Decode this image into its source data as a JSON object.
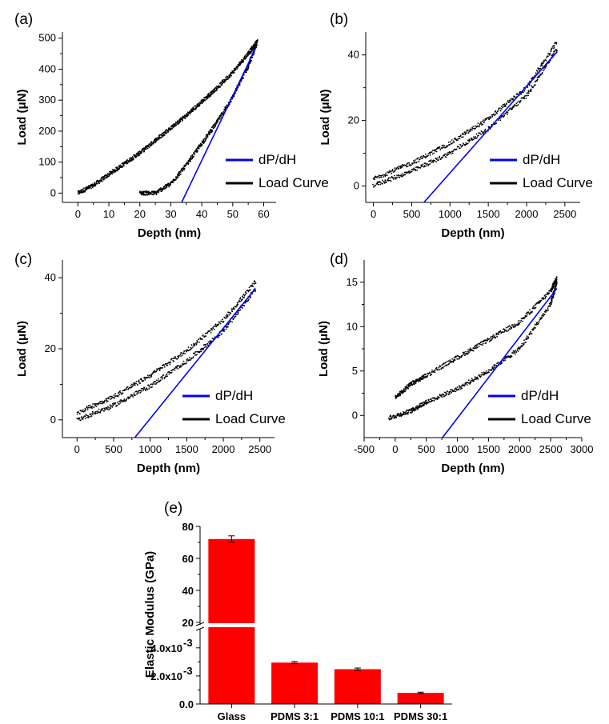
{
  "chart_data": [
    {
      "type": "scatter",
      "panel_label": "(a)",
      "xlabel": "Depth (nm)",
      "ylabel": "Load (μN)",
      "xlim": [
        -5,
        64
      ],
      "ylim": [
        -30,
        520
      ],
      "xticks": [
        0,
        10,
        20,
        30,
        40,
        50,
        60
      ],
      "yticks": [
        0,
        100,
        200,
        300,
        400,
        500
      ],
      "legend": {
        "position": "bottom-right",
        "entries": [
          "dP/dH",
          "Load Curve"
        ]
      },
      "series": [
        {
          "name": "Load Curve",
          "color": "#000000",
          "kind": "points",
          "segments": [
            {
              "x": [
                0,
                5,
                10,
                15,
                20,
                25,
                30,
                35,
                40,
                45,
                50,
                55,
                58
              ],
              "y": [
                0,
                25,
                60,
                95,
                130,
                170,
                210,
                250,
                295,
                340,
                390,
                450,
                490
              ]
            },
            {
              "x": [
                20,
                25,
                30,
                35,
                40,
                45,
                50,
                55,
                58
              ],
              "y": [
                0,
                0,
                30,
                90,
                160,
                230,
                310,
                410,
                490
              ]
            }
          ]
        },
        {
          "name": "dP/dH",
          "color": "#0000ff",
          "kind": "line",
          "x": [
            33.5,
            57.5
          ],
          "y": [
            -30,
            470
          ]
        }
      ]
    },
    {
      "type": "scatter",
      "panel_label": "(b)",
      "xlabel": "Depth (nm)",
      "ylabel": "Load (μN)",
      "xlim": [
        -100,
        2700
      ],
      "ylim": [
        -5,
        47
      ],
      "xticks": [
        0,
        500,
        1000,
        1500,
        2000,
        2500
      ],
      "yticks": [
        0,
        20,
        40
      ],
      "legend": {
        "position": "bottom-right",
        "entries": [
          "dP/dH",
          "Load Curve"
        ]
      },
      "series": [
        {
          "name": "Load Curve",
          "color": "#000000",
          "kind": "points",
          "segments": [
            {
              "x": [
                0,
                500,
                1000,
                1500,
                2000,
                2400
              ],
              "y": [
                2.2,
                7,
                13,
                20.5,
                30,
                44
              ]
            },
            {
              "x": [
                0,
                500,
                1000,
                1500,
                2000,
                2400
              ],
              "y": [
                0.2,
                4.5,
                10,
                17.5,
                27.5,
                42
              ]
            }
          ]
        },
        {
          "name": "dP/dH",
          "color": "#0000ff",
          "kind": "line",
          "x": [
            660,
            2400
          ],
          "y": [
            -5,
            41
          ]
        }
      ]
    },
    {
      "type": "scatter",
      "panel_label": "(c)",
      "xlabel": "Depth (nm)",
      "ylabel": "Load (μN)",
      "xlim": [
        -200,
        2700
      ],
      "ylim": [
        -5,
        45
      ],
      "xticks": [
        0,
        500,
        1000,
        1500,
        2000,
        2500
      ],
      "yticks": [
        0,
        20,
        40
      ],
      "legend": {
        "position": "bottom-right",
        "entries": [
          "dP/dH",
          "Load Curve"
        ]
      },
      "series": [
        {
          "name": "Load Curve",
          "color": "#000000",
          "kind": "points",
          "segments": [
            {
              "x": [
                0,
                500,
                1000,
                1500,
                2000,
                2450
              ],
              "y": [
                2,
                6.5,
                12.5,
                19.5,
                28,
                39
              ]
            },
            {
              "x": [
                0,
                500,
                1000,
                1500,
                2000,
                2450
              ],
              "y": [
                0,
                4,
                9.5,
                16.5,
                25,
                37
              ]
            }
          ]
        },
        {
          "name": "dP/dH",
          "color": "#0000ff",
          "kind": "line",
          "x": [
            790,
            2440
          ],
          "y": [
            -5,
            37
          ]
        }
      ]
    },
    {
      "type": "scatter",
      "panel_label": "(d)",
      "xlabel": "Depth (nm)",
      "ylabel": "Load (μN)",
      "xlim": [
        -500,
        3000
      ],
      "ylim": [
        -2.5,
        17.5
      ],
      "xticks": [
        -500,
        0,
        500,
        1000,
        1500,
        2000,
        2500,
        3000
      ],
      "yticks": [
        0,
        5,
        10,
        15
      ],
      "legend": {
        "position": "bottom-right",
        "entries": [
          "dP/dH",
          "Load Curve"
        ]
      },
      "series": [
        {
          "name": "Load Curve",
          "color": "#000000",
          "kind": "points",
          "segments": [
            {
              "x": [
                0,
                250,
                500,
                1000,
                1500,
                2000,
                2500,
                2600
              ],
              "y": [
                2,
                3.5,
                4.5,
                6.5,
                8.5,
                10.5,
                14,
                15.5
              ]
            },
            {
              "x": [
                -100,
                250,
                500,
                1000,
                1500,
                2000,
                2500,
                2600
              ],
              "y": [
                -0.3,
                0.5,
                1.5,
                3,
                5,
                7.5,
                12.5,
                15
              ]
            }
          ]
        },
        {
          "name": "dP/dH",
          "color": "#0000ff",
          "kind": "line",
          "x": [
            760,
            2600
          ],
          "y": [
            -2.5,
            14.3
          ]
        }
      ]
    },
    {
      "type": "bar",
      "panel_label": "(e)",
      "ylabel": "Elastic Modulus (GPa)",
      "categories": [
        "Glass",
        "PDMS 3:1",
        "PDMS 10:1",
        "PDMS 30:1"
      ],
      "values": [
        72.1,
        0.00295,
        0.00248,
        0.00079
      ],
      "errors": [
        2.0,
        8e-05,
        8e-05,
        5e-05
      ],
      "bar_color": "#ff0000",
      "axis_break": true,
      "upper_segment": {
        "ylim": [
          18,
          80
        ],
        "yticks": [
          20,
          40,
          60,
          80
        ],
        "yticklabels": [
          "20",
          "40",
          "60",
          "80"
        ]
      },
      "lower_segment": {
        "ylim": [
          0,
          0.0053
        ],
        "yticks": [
          0,
          0.002,
          0.004
        ],
        "yticklabels": [
          "0.0",
          "2.0x10",
          "4.0x10"
        ],
        "exponent": "-3"
      }
    }
  ]
}
